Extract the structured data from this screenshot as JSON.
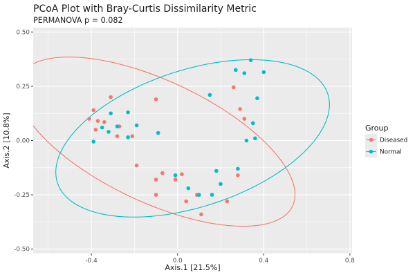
{
  "chart_data": {
    "type": "scatter",
    "title": "PCoA Plot with Bray-Curtis Dissimilarity Metric",
    "subtitle": "PERMANOVA p = 0.082",
    "xlabel": "Axis.1  [21.5%]",
    "ylabel": "Axis.2  [10.8%]",
    "xlim": [
      -0.67,
      0.81
    ],
    "ylim": [
      -0.52,
      0.52
    ],
    "x_ticks": [
      -0.4,
      0.0,
      0.4,
      0.8
    ],
    "x_tick_labels": [
      "-0.4",
      "0.0",
      "0.4",
      "0.8"
    ],
    "y_ticks": [
      -0.5,
      -0.25,
      0.0,
      0.25,
      0.5
    ],
    "y_tick_labels": [
      "-0.50",
      "-0.25",
      "0.00",
      "0.25",
      "0.50"
    ],
    "grid": true,
    "legend": {
      "title": "Group",
      "position": "right",
      "entries": [
        "Diseased",
        "Normal"
      ]
    },
    "series": [
      {
        "name": "Diseased",
        "color": "#F8766D",
        "points": [
          [
            -0.41,
            0.1
          ],
          [
            -0.39,
            0.14
          ],
          [
            -0.37,
            0.09
          ],
          [
            -0.38,
            0.05
          ],
          [
            -0.34,
            0.085
          ],
          [
            -0.31,
            0.2
          ],
          [
            -0.28,
            0.02
          ],
          [
            -0.27,
            0.065
          ],
          [
            -0.21,
            0.02
          ],
          [
            -0.1,
            0.19
          ],
          [
            -0.19,
            -0.115
          ],
          [
            -0.1,
            -0.18
          ],
          [
            -0.1,
            -0.25
          ],
          [
            -0.07,
            -0.15
          ],
          [
            -0.01,
            -0.18
          ],
          [
            0.02,
            -0.155
          ],
          [
            0.04,
            -0.28
          ],
          [
            0.09,
            -0.25
          ],
          [
            0.11,
            -0.34
          ],
          [
            0.23,
            -0.28
          ],
          [
            0.26,
            0.245
          ],
          [
            0.28,
            -0.16
          ],
          [
            0.29,
            0.145
          ],
          [
            0.31,
            0.1
          ]
        ],
        "ellipse": {
          "center": [
            -0.1,
            -0.005
          ],
          "semi_major": 0.7,
          "semi_minor": 0.28,
          "angle_deg": -25
        }
      },
      {
        "name": "Normal",
        "color": "#00BFC4",
        "points": [
          [
            -0.39,
            -0.005
          ],
          [
            -0.35,
            0.06
          ],
          [
            -0.32,
            0.04
          ],
          [
            -0.31,
            0.125
          ],
          [
            -0.28,
            0.065
          ],
          [
            -0.23,
            0.13
          ],
          [
            -0.23,
            0.015
          ],
          [
            -0.19,
            0.07
          ],
          [
            -0.09,
            0.035
          ],
          [
            -0.01,
            -0.16
          ],
          [
            0.05,
            -0.22
          ],
          [
            0.1,
            -0.25
          ],
          [
            0.15,
            0.21
          ],
          [
            0.16,
            -0.25
          ],
          [
            0.18,
            -0.14
          ],
          [
            0.2,
            -0.2
          ],
          [
            0.28,
            -0.13
          ],
          [
            0.27,
            0.325
          ],
          [
            0.31,
            0.31
          ],
          [
            0.32,
            0.0
          ],
          [
            0.34,
            0.37
          ],
          [
            0.35,
            0.08
          ],
          [
            0.36,
            0.01
          ],
          [
            0.37,
            0.195
          ],
          [
            0.4,
            0.315
          ]
        ],
        "ellipse": {
          "center": [
            0.07,
            0.01
          ],
          "semi_major": 0.66,
          "semi_minor": 0.315,
          "angle_deg": 18
        }
      }
    ]
  }
}
